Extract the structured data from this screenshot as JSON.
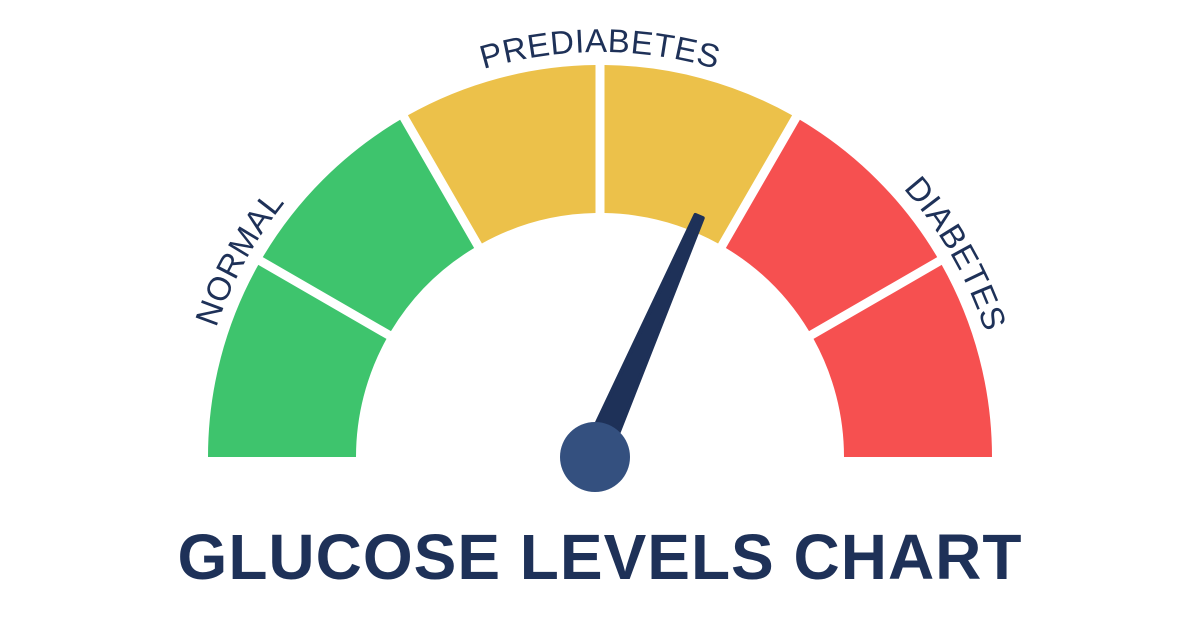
{
  "title": "GLUCOSE LEVELS CHART",
  "zones": [
    {
      "label": "NORMAL",
      "color": "#3ec46d",
      "segments": 2
    },
    {
      "label": "PREDIABETES",
      "color": "#ecc14a",
      "segments": 2
    },
    {
      "label": "DIABETES",
      "color": "#f65050",
      "segments": 2
    }
  ],
  "needle": {
    "position_fraction": 0.63,
    "color": "#1e3158",
    "hub_color": "#34507f"
  },
  "text_color": "#1e3158"
}
